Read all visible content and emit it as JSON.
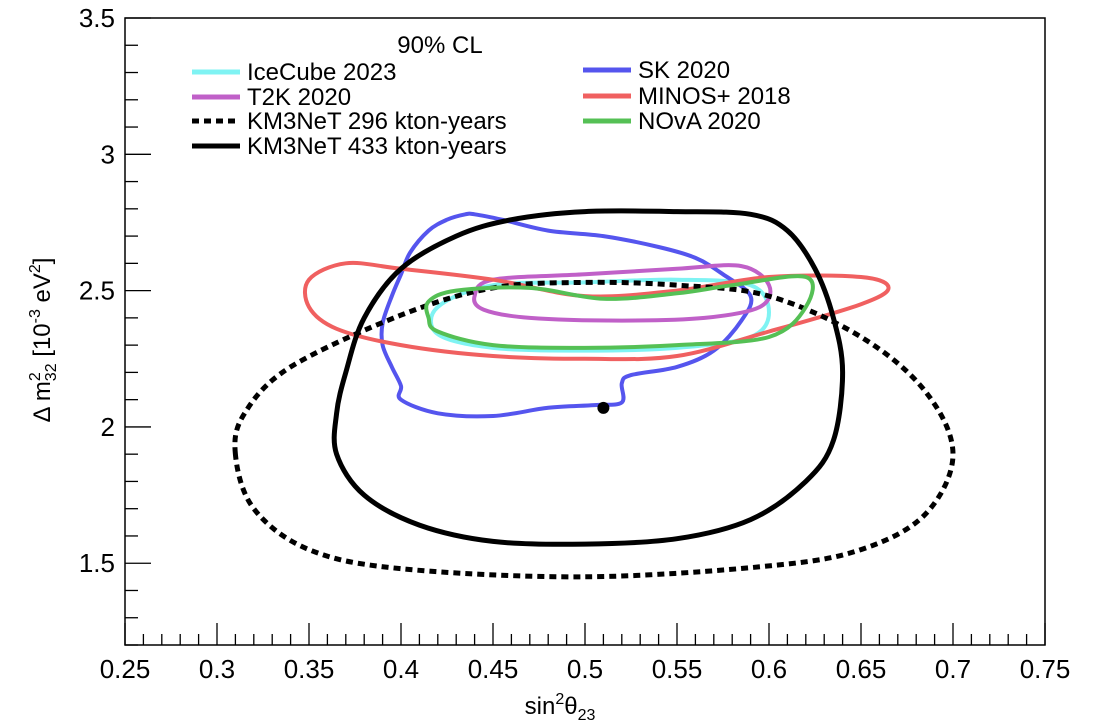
{
  "chart_data": {
    "type": "line",
    "title": "",
    "legend_title": "90% CL",
    "xlabel": {
      "base": "sin",
      "sup": "2",
      "symbol": "θ",
      "sub": "23"
    },
    "ylabel": {
      "prefix": "Δ m",
      "sup": "2",
      "sub": "32",
      "bracket_open": " [10",
      "exp": "-3",
      "unit": " eV",
      "unit_sup": "2",
      "bracket_close": "]"
    },
    "xlim": [
      0.25,
      0.75
    ],
    "ylim": [
      1.2,
      3.5
    ],
    "x_ticks": [
      0.25,
      0.3,
      0.35,
      0.4,
      0.45,
      0.5,
      0.55,
      0.6,
      0.65,
      0.7,
      0.75
    ],
    "x_tick_labels": [
      "0.25",
      "0.3",
      "0.35",
      "0.4",
      "0.45",
      "0.5",
      "0.55",
      "0.6",
      "0.65",
      "0.7",
      "0.75"
    ],
    "y_ticks": [
      1.5,
      2,
      2.5,
      3,
      3.5
    ],
    "y_tick_labels": [
      "1.5",
      "2",
      "2.5",
      "3",
      "3.5"
    ],
    "grid": false,
    "legend_placement": "top",
    "best_fit_point": {
      "x": 0.51,
      "y": 2.07,
      "color": "#000000"
    },
    "series": [
      {
        "name": "IceCube 2023",
        "color": "#7ff3f3",
        "dash": "solid",
        "points": [
          [
            0.42,
            2.44
          ],
          [
            0.45,
            2.52
          ],
          [
            0.5,
            2.53
          ],
          [
            0.55,
            2.54
          ],
          [
            0.59,
            2.52
          ],
          [
            0.6,
            2.42
          ],
          [
            0.59,
            2.33
          ],
          [
            0.55,
            2.29
          ],
          [
            0.5,
            2.28
          ],
          [
            0.45,
            2.29
          ],
          [
            0.42,
            2.34
          ],
          [
            0.42,
            2.44
          ]
        ]
      },
      {
        "name": "SK 2020",
        "color": "#5555ee",
        "dash": "solid",
        "points": [
          [
            0.435,
            2.78
          ],
          [
            0.44,
            2.78
          ],
          [
            0.455,
            2.76
          ],
          [
            0.48,
            2.72
          ],
          [
            0.51,
            2.7
          ],
          [
            0.54,
            2.66
          ],
          [
            0.56,
            2.62
          ],
          [
            0.575,
            2.56
          ],
          [
            0.59,
            2.48
          ],
          [
            0.585,
            2.39
          ],
          [
            0.57,
            2.28
          ],
          [
            0.55,
            2.22
          ],
          [
            0.525,
            2.19
          ],
          [
            0.52,
            2.16
          ],
          [
            0.52,
            2.09
          ],
          [
            0.505,
            2.08
          ],
          [
            0.48,
            2.07
          ],
          [
            0.45,
            2.04
          ],
          [
            0.42,
            2.05
          ],
          [
            0.4,
            2.1
          ],
          [
            0.4,
            2.15
          ],
          [
            0.395,
            2.22
          ],
          [
            0.39,
            2.3
          ],
          [
            0.39,
            2.38
          ],
          [
            0.395,
            2.48
          ],
          [
            0.4,
            2.56
          ],
          [
            0.405,
            2.64
          ],
          [
            0.415,
            2.72
          ],
          [
            0.425,
            2.76
          ],
          [
            0.435,
            2.78
          ]
        ]
      },
      {
        "name": "T2K 2020",
        "color": "#c060c8",
        "dash": "solid",
        "points": [
          [
            0.44,
            2.48
          ],
          [
            0.45,
            2.54
          ],
          [
            0.5,
            2.56
          ],
          [
            0.55,
            2.58
          ],
          [
            0.585,
            2.59
          ],
          [
            0.6,
            2.52
          ],
          [
            0.595,
            2.44
          ],
          [
            0.565,
            2.4
          ],
          [
            0.52,
            2.39
          ],
          [
            0.47,
            2.4
          ],
          [
            0.445,
            2.43
          ],
          [
            0.44,
            2.48
          ]
        ]
      },
      {
        "name": "MINOS+ 2018",
        "color": "#f06060",
        "dash": "solid",
        "points": [
          [
            0.37,
            2.6
          ],
          [
            0.4,
            2.58
          ],
          [
            0.45,
            2.54
          ],
          [
            0.5,
            2.48
          ],
          [
            0.55,
            2.5
          ],
          [
            0.6,
            2.55
          ],
          [
            0.65,
            2.55
          ],
          [
            0.665,
            2.51
          ],
          [
            0.65,
            2.45
          ],
          [
            0.6,
            2.35
          ],
          [
            0.55,
            2.26
          ],
          [
            0.5,
            2.25
          ],
          [
            0.45,
            2.26
          ],
          [
            0.4,
            2.3
          ],
          [
            0.365,
            2.36
          ],
          [
            0.35,
            2.44
          ],
          [
            0.35,
            2.54
          ],
          [
            0.37,
            2.6
          ]
        ]
      },
      {
        "name": "KM3NeT 296 kton-years",
        "color": "#000000",
        "dash": "dotted",
        "points": [
          [
            0.31,
            1.9
          ],
          [
            0.315,
            2.05
          ],
          [
            0.34,
            2.22
          ],
          [
            0.4,
            2.41
          ],
          [
            0.45,
            2.51
          ],
          [
            0.5,
            2.53
          ],
          [
            0.55,
            2.52
          ],
          [
            0.6,
            2.48
          ],
          [
            0.65,
            2.33
          ],
          [
            0.685,
            2.13
          ],
          [
            0.7,
            1.9
          ],
          [
            0.685,
            1.68
          ],
          [
            0.65,
            1.55
          ],
          [
            0.6,
            1.49
          ],
          [
            0.5,
            1.45
          ],
          [
            0.4,
            1.48
          ],
          [
            0.35,
            1.55
          ],
          [
            0.32,
            1.7
          ],
          [
            0.31,
            1.9
          ]
        ]
      },
      {
        "name": "KM3NeT 433 kton-years",
        "color": "#000000",
        "dash": "solid",
        "points": [
          [
            0.37,
            2.2
          ],
          [
            0.38,
            2.4
          ],
          [
            0.4,
            2.58
          ],
          [
            0.43,
            2.7
          ],
          [
            0.46,
            2.76
          ],
          [
            0.5,
            2.79
          ],
          [
            0.55,
            2.79
          ],
          [
            0.59,
            2.78
          ],
          [
            0.61,
            2.72
          ],
          [
            0.625,
            2.58
          ],
          [
            0.635,
            2.4
          ],
          [
            0.64,
            2.2
          ],
          [
            0.635,
            1.95
          ],
          [
            0.62,
            1.8
          ],
          [
            0.59,
            1.66
          ],
          [
            0.55,
            1.59
          ],
          [
            0.5,
            1.57
          ],
          [
            0.45,
            1.58
          ],
          [
            0.41,
            1.64
          ],
          [
            0.38,
            1.75
          ],
          [
            0.365,
            1.9
          ],
          [
            0.365,
            2.05
          ],
          [
            0.37,
            2.2
          ]
        ]
      },
      {
        "name": "NOvA 2020",
        "color": "#55c055",
        "dash": "solid",
        "points": [
          [
            0.415,
            2.46
          ],
          [
            0.43,
            2.5
          ],
          [
            0.47,
            2.51
          ],
          [
            0.51,
            2.47
          ],
          [
            0.55,
            2.49
          ],
          [
            0.58,
            2.52
          ],
          [
            0.62,
            2.55
          ],
          [
            0.62,
            2.44
          ],
          [
            0.6,
            2.33
          ],
          [
            0.55,
            2.3
          ],
          [
            0.5,
            2.29
          ],
          [
            0.45,
            2.3
          ],
          [
            0.42,
            2.35
          ],
          [
            0.415,
            2.4
          ],
          [
            0.415,
            2.46
          ]
        ]
      }
    ]
  }
}
